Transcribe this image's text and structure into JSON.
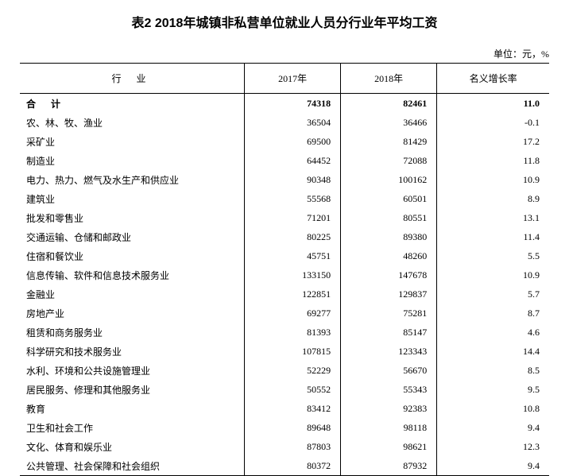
{
  "title": "表2  2018年城镇非私营单位就业人员分行业年平均工资",
  "unit": "单位：元，%",
  "headers": {
    "industry": "行  业",
    "year2017": "2017年",
    "year2018": "2018年",
    "growth": "名义增长率"
  },
  "total": {
    "label": "合  计",
    "y2017": "74318",
    "y2018": "82461",
    "growth": "11.0"
  },
  "rows": [
    {
      "label": "农、林、牧、渔业",
      "y2017": "36504",
      "y2018": "36466",
      "growth": "-0.1"
    },
    {
      "label": "采矿业",
      "y2017": "69500",
      "y2018": "81429",
      "growth": "17.2"
    },
    {
      "label": "制造业",
      "y2017": "64452",
      "y2018": "72088",
      "growth": "11.8"
    },
    {
      "label": "电力、热力、燃气及水生产和供应业",
      "y2017": "90348",
      "y2018": "100162",
      "growth": "10.9"
    },
    {
      "label": "建筑业",
      "y2017": "55568",
      "y2018": "60501",
      "growth": "8.9"
    },
    {
      "label": "批发和零售业",
      "y2017": "71201",
      "y2018": "80551",
      "growth": "13.1"
    },
    {
      "label": "交通运输、仓储和邮政业",
      "y2017": "80225",
      "y2018": "89380",
      "growth": "11.4"
    },
    {
      "label": "住宿和餐饮业",
      "y2017": "45751",
      "y2018": "48260",
      "growth": "5.5"
    },
    {
      "label": "信息传输、软件和信息技术服务业",
      "y2017": "133150",
      "y2018": "147678",
      "growth": "10.9"
    },
    {
      "label": "金融业",
      "y2017": "122851",
      "y2018": "129837",
      "growth": "5.7"
    },
    {
      "label": "房地产业",
      "y2017": "69277",
      "y2018": "75281",
      "growth": "8.7"
    },
    {
      "label": "租赁和商务服务业",
      "y2017": "81393",
      "y2018": "85147",
      "growth": "4.6"
    },
    {
      "label": "科学研究和技术服务业",
      "y2017": "107815",
      "y2018": "123343",
      "growth": "14.4"
    },
    {
      "label": "水利、环境和公共设施管理业",
      "y2017": "52229",
      "y2018": "56670",
      "growth": "8.5"
    },
    {
      "label": "居民服务、修理和其他服务业",
      "y2017": "50552",
      "y2018": "55343",
      "growth": "9.5"
    },
    {
      "label": "教育",
      "y2017": "83412",
      "y2018": "92383",
      "growth": "10.8"
    },
    {
      "label": "卫生和社会工作",
      "y2017": "89648",
      "y2018": "98118",
      "growth": "9.4"
    },
    {
      "label": "文化、体育和娱乐业",
      "y2017": "87803",
      "y2018": "98621",
      "growth": "12.3"
    },
    {
      "label": "公共管理、社会保障和社会组织",
      "y2017": "80372",
      "y2018": "87932",
      "growth": "9.4"
    }
  ]
}
